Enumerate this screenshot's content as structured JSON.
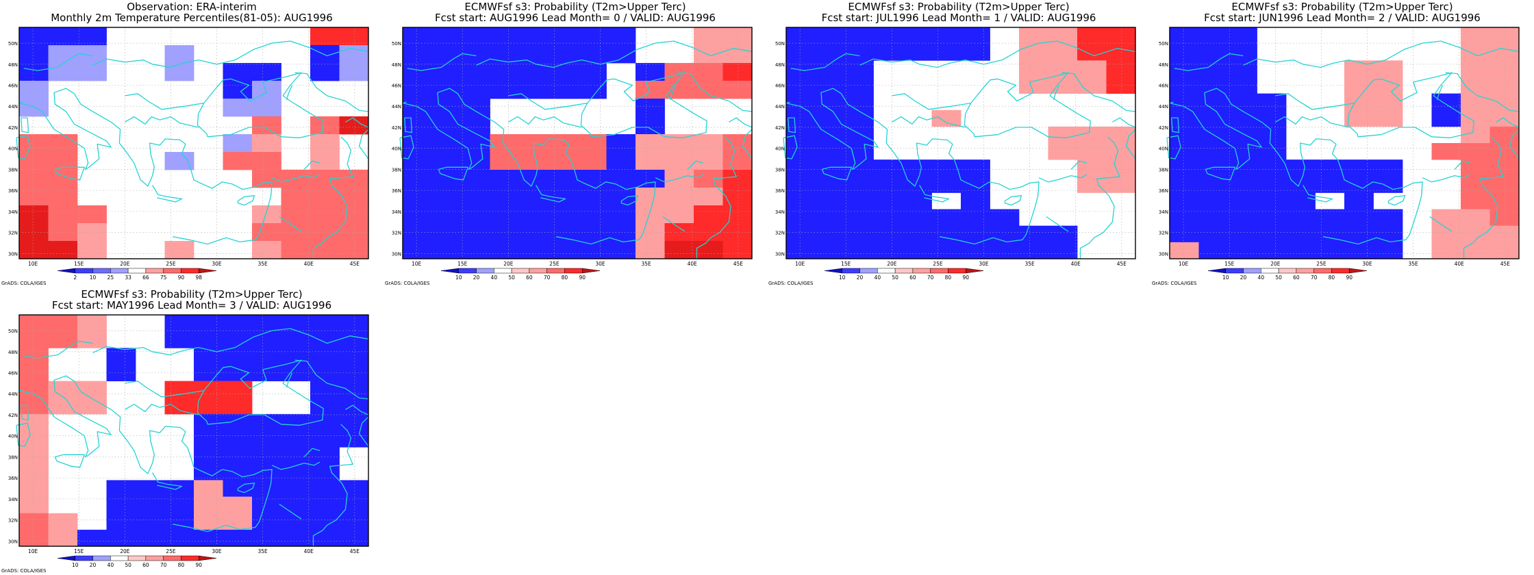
{
  "panels": [
    {
      "title_line1": "Observation: ERA-interim",
      "title_line2": "Monthly 2m Temperature Percentiles(81-05): AUG1996",
      "colorbar_labels": [
        "2",
        "10",
        "25",
        "33",
        "66",
        "75",
        "90",
        "98"
      ],
      "grid": [
        "BBB.......RR",
        "BLL..L....BL",
        "BLL..L.BB.BL",
        "L......BL...",
        "L......LL...",
        "........M.MS",
        "MM.....LP.P.",
        "MM...L.MM.P.",
        "MM......MMMM",
        "MM.......MMM",
        "SMM.....PMMM",
        "SMP.....MMMM",
        "SSP..P..PMMM"
      ]
    },
    {
      "title_line1": "ECMWFsf s3: Probability (T2m>Upper Terc)",
      "title_line2": "Fcst start: AUG1996  Lead Month= 0 / VALID: AUG1996",
      "colorbar_labels": [
        "10",
        "20",
        "40",
        "50",
        "60",
        "70",
        "80",
        "90"
      ],
      "grid": [
        "BBBBBBBB..PP",
        "BBBBBBBB..PP",
        "BBBBBBB.BMMR",
        "BBBBBBB.MMMM",
        "BBB.....B...",
        "BBB.....B...",
        "BBBMMMMBPPPM",
        "BBBMMMMBPPPM",
        "BBBBBBBBBPMR",
        "BBBBBBBBPPPR",
        "BBBBBBBBPPRR",
        "BBBBBBBBPRRR",
        "BBBBBBBBPSSR"
      ]
    },
    {
      "title_line1": "ECMWFsf s3: Probability (T2m>Upper Terc)",
      "title_line2": "Fcst start: JUL1996  Lead Month= 1 / VALID: AUG1996",
      "colorbar_labels": [
        "10",
        "20",
        "40",
        "50",
        "60",
        "70",
        "80",
        "90"
      ],
      "grid": [
        "BBBBBBB.PPRR",
        "BBBBBBB.PPRR",
        "BBB.....PPPR",
        "BBB.....PPPR",
        "BBB.........",
        "BBB..P......",
        "BBB......PPP",
        "BBB......PPP",
        "BBBBBBB...PP",
        "BBBBBBB...PP",
        "BBBBB.B.....",
        "BBBBBBBB....",
        "BBBBBBBBBB..",
        "BBBBBBBBBB.."
      ]
    },
    {
      "title_line1": "ECMWFsf s3: Probability (T2m>Upper Terc)",
      "title_line2": "Fcst start: JUN1996  Lead Month= 2 / VALID: AUG1996",
      "colorbar_labels": [
        "10",
        "20",
        "40",
        "50",
        "60",
        "70",
        "80",
        "90"
      ],
      "grid": [
        "BBB.......PP",
        "BBB.......PP",
        "BBB...PP..PP",
        "BBB...PP..PP",
        "BBBB..PP.BPP",
        "BBBB..PP.BPP",
        "BBBB......PM",
        "BBBB.....MMM",
        "BBBBBBBB..MM",
        "BBBBBBBB..MM",
        "BBBBB.B...MM",
        "BBBBBBBB.PPM",
        "BBBBBBBB.PPP",
        "PBBBBBBB.PPP"
      ]
    },
    {
      "title_line1": "ECMWFsf s3: Probability (T2m>Upper Terc)",
      "title_line2": "Fcst start: MAY1996  Lead Month= 3 / VALID: AUG1996",
      "colorbar_labels": [
        "10",
        "20",
        "40",
        "50",
        "60",
        "70",
        "80",
        "90"
      ],
      "grid": [
        "MMP..BBBBBBB",
        "MMP..BBBBBBB",
        "M..B..BBBBBB",
        "M..B..BBBBBB",
        "MPP..RRR..BB",
        "MPP..RRR..BB",
        "P.....BBBBBB",
        "P.....BBBBBB",
        "P.....BBBBB.",
        "P.....BBBBB.",
        "P..BBBPBBBBB",
        "P..BBBPPBBBB",
        "MP.BBBPPBBBB",
        "MPBBBBBBBBBB"
      ]
    }
  ],
  "credit_text": "GrADS: COLA/IGES",
  "lon_labels": [
    "10E",
    "15E",
    "20E",
    "25E",
    "30E",
    "35E",
    "40E",
    "45E"
  ],
  "lat_labels": [
    "30N",
    "32N",
    "34N",
    "36N",
    "38N",
    "40N",
    "42N",
    "44N",
    "46N",
    "48N",
    "50N"
  ],
  "colors": {
    "B": "#1f1fff",
    "L": "#a0a0ff",
    "P": "#ffa0a0",
    "M": "#ff6b6b",
    "R": "#ff2a2a",
    "S": "#e61c1c",
    "coast": "#23d3d3",
    "obs_colorbar": [
      "#1010c8",
      "#3c3cff",
      "#6c6cff",
      "#a0a0ff",
      "#ffffff",
      "#ffa0a0",
      "#ff6b6b",
      "#ff2a2a",
      "#c81010"
    ],
    "prob_colorbar": [
      "#1010c8",
      "#3c3cff",
      "#a0a0ff",
      "#ffffff",
      "#ffc8c8",
      "#ffa0a0",
      "#ff6b6b",
      "#ff2a2a",
      "#c81010"
    ]
  }
}
